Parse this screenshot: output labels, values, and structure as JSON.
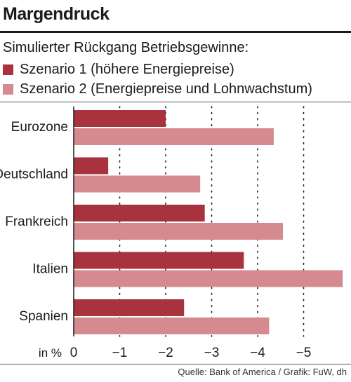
{
  "title": "Margendruck",
  "subtitle": "Simulierter Rückgang Betriebsgewinne:",
  "legend": [
    {
      "label": "Szenario 1 (höhere Energiepreise)",
      "color": "#a8323d"
    },
    {
      "label": "Szenario 2 (Energiepreise und Lohnwachstum)",
      "color": "#d48a8f"
    }
  ],
  "source": "Quelle: Bank of America / Grafik: FuW, dh",
  "chart_data": {
    "type": "bar",
    "orientation": "horizontal",
    "categories": [
      "Eurozone",
      "Deutschland",
      "Frankreich",
      "Italien",
      "Spanien"
    ],
    "series": [
      {
        "name": "Szenario 1 (höhere Energiepreise)",
        "color": "#a8323d",
        "values": [
          -2.0,
          -0.75,
          -2.85,
          -3.7,
          -2.4
        ]
      },
      {
        "name": "Szenario 2 (Energiepreise und Lohnwachstum)",
        "color": "#d48a8f",
        "values": [
          -4.35,
          -2.75,
          -4.55,
          -5.85,
          -4.25
        ]
      }
    ],
    "xlabel": "in %",
    "xticks": [
      0,
      -1,
      -2,
      -3,
      -4,
      -5
    ],
    "xtick_labels": [
      "0",
      "−1",
      "−2",
      "−3",
      "−4",
      "−5"
    ],
    "xlim": [
      0,
      -5.9
    ],
    "grid": "dotted vertical"
  }
}
